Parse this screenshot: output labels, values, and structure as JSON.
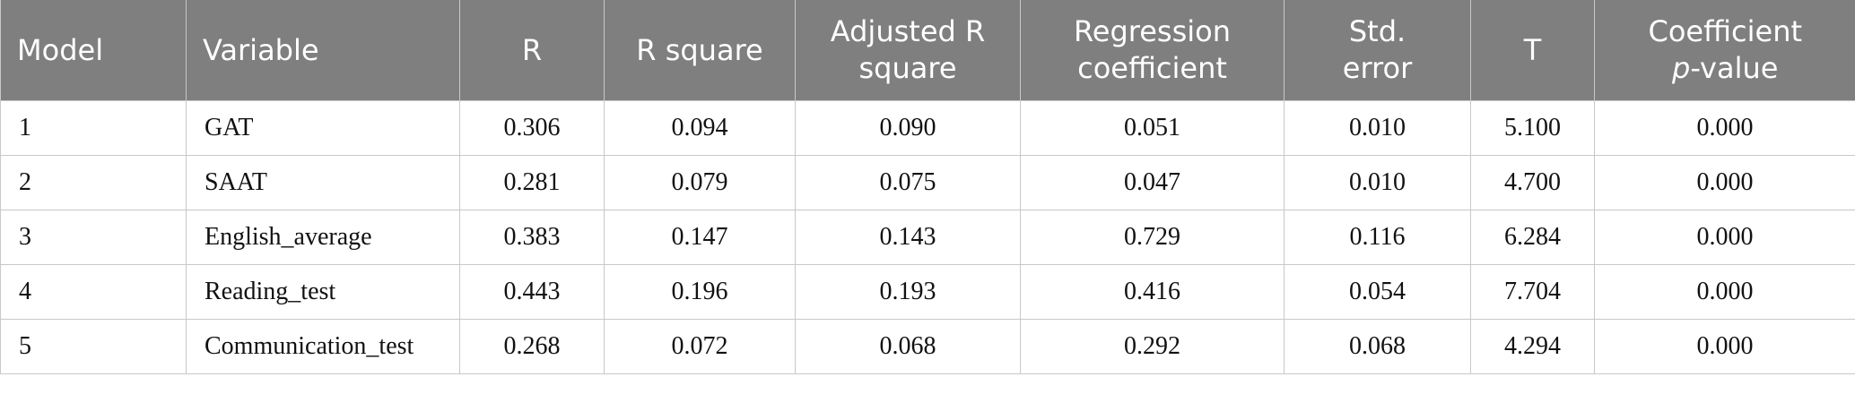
{
  "table": {
    "header": [
      [
        "Model"
      ],
      [
        "Variable"
      ],
      [
        "R"
      ],
      [
        "R square"
      ],
      [
        "Adjusted R",
        "square"
      ],
      [
        "Regression",
        "coefficient"
      ],
      [
        "Std.",
        "error"
      ],
      [
        "T"
      ],
      [
        "Coefficient",
        [
          {
            "text": "p",
            "italic": true
          },
          {
            "text": "-value"
          }
        ]
      ]
    ],
    "rows": [
      [
        "1",
        "GAT",
        "0.306",
        "0.094",
        "0.090",
        "0.051",
        "0.010",
        "5.100",
        "0.000"
      ],
      [
        "2",
        "SAAT",
        "0.281",
        "0.079",
        "0.075",
        "0.047",
        "0.010",
        "4.700",
        "0.000"
      ],
      [
        "3",
        "English_average",
        "0.383",
        "0.147",
        "0.143",
        "0.729",
        "0.116",
        "6.284",
        "0.000"
      ],
      [
        "4",
        "Reading_test",
        "0.443",
        "0.196",
        "0.193",
        "0.416",
        "0.054",
        "7.704",
        "0.000"
      ],
      [
        "5",
        "Communication_test",
        "0.268",
        "0.072",
        "0.068",
        "0.292",
        "0.068",
        "4.294",
        "0.000"
      ]
    ]
  }
}
